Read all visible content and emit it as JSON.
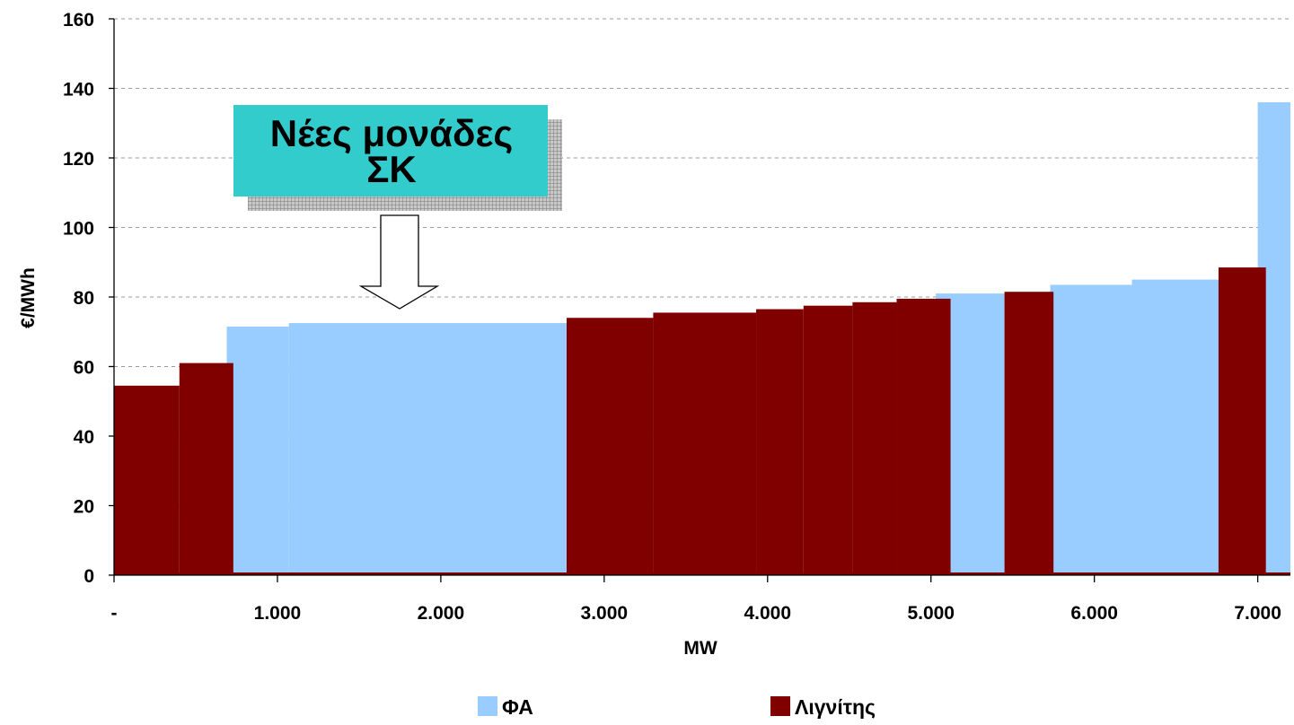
{
  "chart_data": {
    "type": "area",
    "title": "",
    "xlabel": "MW",
    "ylabel": "€/MWh",
    "xlim": [
      0,
      7200
    ],
    "ylim": [
      0,
      160
    ],
    "yticks": [
      "0",
      "20",
      "40",
      "60",
      "80",
      "100",
      "120",
      "140",
      "160"
    ],
    "xticks": [
      {
        "value": 0,
        "label": "-"
      },
      {
        "value": 1000,
        "label": "1.000"
      },
      {
        "value": 2000,
        "label": "2.000"
      },
      {
        "value": 3000,
        "label": "3.000"
      },
      {
        "value": 4000,
        "label": "4.000"
      },
      {
        "value": 5000,
        "label": "5.000"
      },
      {
        "value": 6000,
        "label": "6.000"
      },
      {
        "value": 7000,
        "label": "7.000"
      }
    ],
    "grid": true,
    "legend_position": "bottom",
    "series": [
      {
        "name": "ΦΑ",
        "color": "#99ccff",
        "blocks": [
          {
            "x0": 690,
            "x1": 1070,
            "y": 71.5
          },
          {
            "x0": 1070,
            "x1": 2770,
            "y": 72.5
          },
          {
            "x0": 5030,
            "x1": 5450,
            "y": 81
          },
          {
            "x0": 5730,
            "x1": 6230,
            "y": 83.5
          },
          {
            "x0": 6230,
            "x1": 6780,
            "y": 85
          },
          {
            "x0": 7000,
            "x1": 7200,
            "y": 136
          }
        ]
      },
      {
        "name": "Λιγνίτης",
        "color": "#800000",
        "blocks": [
          {
            "x0": 0,
            "x1": 400,
            "y": 54.5
          },
          {
            "x0": 400,
            "x1": 730,
            "y": 61
          },
          {
            "x0": 2770,
            "x1": 3300,
            "y": 74
          },
          {
            "x0": 3300,
            "x1": 3930,
            "y": 75.5
          },
          {
            "x0": 3930,
            "x1": 4220,
            "y": 76.5
          },
          {
            "x0": 4220,
            "x1": 4520,
            "y": 77.5
          },
          {
            "x0": 4520,
            "x1": 4790,
            "y": 78.5
          },
          {
            "x0": 4790,
            "x1": 5120,
            "y": 79.5
          },
          {
            "x0": 5450,
            "x1": 5750,
            "y": 81.5
          },
          {
            "x0": 6760,
            "x1": 7050,
            "y": 88.5
          }
        ]
      }
    ],
    "annotation": {
      "lines": [
        "Νέες μονάδες",
        "ΣΚ"
      ],
      "box_color": "#33cccc",
      "arrow_target_x": 1740
    }
  }
}
